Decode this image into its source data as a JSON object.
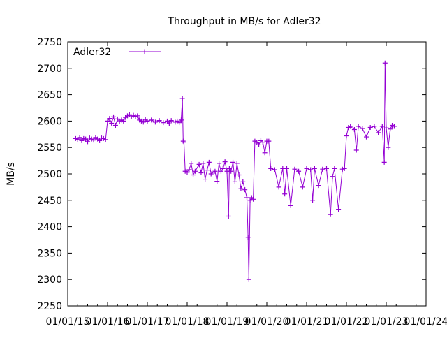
{
  "chart_data": {
    "type": "line",
    "title": "Throughput in MB/s for Adler32",
    "xlabel": "",
    "ylabel": "MB/s",
    "ylim": [
      2250,
      2750
    ],
    "xlim": [
      2015,
      2024
    ],
    "yticks": [
      2250,
      2300,
      2350,
      2400,
      2450,
      2500,
      2550,
      2600,
      2650,
      2700,
      2750
    ],
    "xticks": [
      {
        "value": 2015,
        "label": "01/01/15"
      },
      {
        "value": 2016,
        "label": "01/01/16"
      },
      {
        "value": 2017,
        "label": "01/01/17"
      },
      {
        "value": 2018,
        "label": "01/01/18"
      },
      {
        "value": 2019,
        "label": "01/01/19"
      },
      {
        "value": 2020,
        "label": "01/01/20"
      },
      {
        "value": 2021,
        "label": "01/01/21"
      },
      {
        "value": 2022,
        "label": "01/01/22"
      },
      {
        "value": 2023,
        "label": "01/01/23"
      },
      {
        "value": 2024,
        "label": "01/01/24"
      }
    ],
    "grid": false,
    "legend_position": "top-left",
    "color": "#9400d3",
    "series": [
      {
        "name": "Adler32",
        "x": [
          2015.2,
          2015.25,
          2015.3,
          2015.35,
          2015.4,
          2015.45,
          2015.5,
          2015.55,
          2015.6,
          2015.65,
          2015.7,
          2015.75,
          2015.8,
          2015.85,
          2015.9,
          2015.95,
          2016.0,
          2016.05,
          2016.1,
          2016.15,
          2016.2,
          2016.25,
          2016.3,
          2016.35,
          2016.4,
          2016.45,
          2016.5,
          2016.55,
          2016.6,
          2016.65,
          2016.7,
          2016.75,
          2016.8,
          2016.85,
          2016.9,
          2016.95,
          2017.0,
          2017.1,
          2017.2,
          2017.3,
          2017.4,
          2017.5,
          2017.55,
          2017.6,
          2017.7,
          2017.75,
          2017.8,
          2017.85,
          2017.88,
          2017.9,
          2017.92,
          2017.95,
          2018.0,
          2018.05,
          2018.1,
          2018.15,
          2018.2,
          2018.3,
          2018.35,
          2018.4,
          2018.45,
          2018.5,
          2018.55,
          2018.6,
          2018.7,
          2018.75,
          2018.8,
          2018.85,
          2018.9,
          2018.95,
          2019.0,
          2019.04,
          2019.06,
          2019.1,
          2019.15,
          2019.2,
          2019.25,
          2019.3,
          2019.35,
          2019.4,
          2019.45,
          2019.5,
          2019.53,
          2019.55,
          2019.58,
          2019.62,
          2019.66,
          2019.7,
          2019.75,
          2019.8,
          2019.85,
          2019.9,
          2019.95,
          2020.0,
          2020.05,
          2020.1,
          2020.2,
          2020.3,
          2020.4,
          2020.45,
          2020.5,
          2020.6,
          2020.7,
          2020.8,
          2020.9,
          2021.0,
          2021.1,
          2021.15,
          2021.2,
          2021.3,
          2021.4,
          2021.5,
          2021.6,
          2021.65,
          2021.7,
          2021.8,
          2021.9,
          2021.95,
          2022.0,
          2022.05,
          2022.1,
          2022.2,
          2022.25,
          2022.3,
          2022.4,
          2022.5,
          2022.6,
          2022.7,
          2022.8,
          2022.9,
          2022.95,
          2022.97,
          2023.0,
          2023.05,
          2023.1,
          2023.15,
          2023.2
        ],
        "values": [
          2567,
          2565,
          2569,
          2563,
          2567,
          2566,
          2561,
          2568,
          2566,
          2564,
          2569,
          2566,
          2563,
          2568,
          2567,
          2565,
          2600,
          2605,
          2596,
          2608,
          2592,
          2604,
          2599,
          2602,
          2600,
          2607,
          2610,
          2612,
          2608,
          2611,
          2609,
          2610,
          2602,
          2600,
          2598,
          2603,
          2600,
          2602,
          2598,
          2601,
          2597,
          2600,
          2595,
          2601,
          2598,
          2600,
          2597,
          2602,
          2643,
          2562,
          2560,
          2505,
          2503,
          2508,
          2520,
          2498,
          2505,
          2518,
          2502,
          2520,
          2490,
          2507,
          2522,
          2500,
          2505,
          2486,
          2520,
          2505,
          2510,
          2523,
          2505,
          2420,
          2510,
          2505,
          2522,
          2485,
          2520,
          2498,
          2472,
          2485,
          2470,
          2455,
          2380,
          2300,
          2450,
          2455,
          2452,
          2562,
          2560,
          2555,
          2563,
          2560,
          2540,
          2562,
          2562,
          2510,
          2508,
          2475,
          2510,
          2462,
          2510,
          2440,
          2509,
          2505,
          2475,
          2510,
          2508,
          2450,
          2510,
          2478,
          2509,
          2510,
          2423,
          2495,
          2510,
          2433,
          2509,
          2510,
          2572,
          2588,
          2590,
          2584,
          2545,
          2590,
          2586,
          2570,
          2588,
          2590,
          2578,
          2590,
          2522,
          2710,
          2587,
          2550,
          2585,
          2592,
          2590
        ]
      }
    ]
  }
}
